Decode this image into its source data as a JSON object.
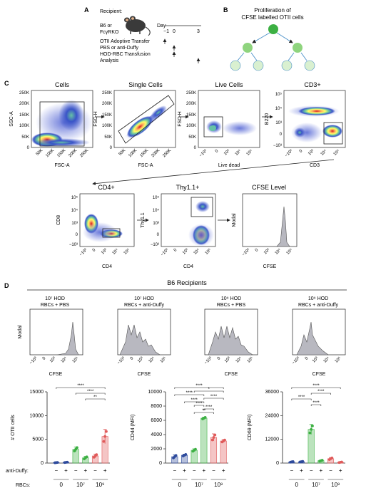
{
  "panel_letters": [
    "A",
    "B",
    "C",
    "D"
  ],
  "panelA": {
    "recipient_label": "Recipient:",
    "mouse_labels": [
      "B6 or",
      "FcγRKO"
    ],
    "day_label": "Day",
    "day_ticks": [
      "−1",
      "0",
      "3"
    ],
    "steps": [
      "OTII Adoptive Transfer",
      "PBS or anti-Duffy",
      "HOD-RBC Transfusion",
      "Analysis"
    ]
  },
  "panelB": {
    "title_lines": [
      "Proliferation of",
      "CFSE labelled OTII cells"
    ]
  },
  "panelC": {
    "plots": [
      {
        "title": "Cells",
        "xlabel": "FSC-A",
        "ylabel": "SSC-A",
        "xticks": [
          "50K",
          "100K",
          "150K",
          "200K",
          "250K"
        ],
        "yticks": [
          "250K",
          "200K",
          "150K",
          "100K",
          "50K",
          "0"
        ]
      },
      {
        "title": "Single Cells",
        "xlabel": "FSC-A",
        "ylabel": "FSC-H",
        "xticks": [
          "50K",
          "100K",
          "150K",
          "200K",
          "250K"
        ],
        "yticks": [
          "250K",
          "200K",
          "150K",
          "100K",
          "50K",
          "0"
        ]
      },
      {
        "title": "Live Cells",
        "xlabel": "Live dead",
        "ylabel": "FSC-H",
        "xticks": [
          "−10³",
          "0",
          "10³",
          "10⁴",
          "10⁵"
        ],
        "yticks": [
          "250K",
          "200K",
          "150K",
          "100K",
          "50K",
          "0"
        ]
      },
      {
        "title": "CD3+",
        "xlabel": "CD3",
        "ylabel": "B220",
        "xticks": [
          "−10³",
          "0",
          "10³",
          "10⁴",
          "10⁵"
        ],
        "yticks": [
          "10⁵",
          "10⁴",
          "10³",
          "0",
          "−10³"
        ]
      },
      {
        "title": "CD4+",
        "xlabel": "CD4",
        "ylabel": "CD8",
        "xticks": [
          "−10³",
          "0",
          "10³",
          "10⁴",
          "10⁵"
        ],
        "yticks": [
          "10⁵",
          "10⁴",
          "10³",
          "0",
          "−10³"
        ]
      },
      {
        "title": "Thy1.1+",
        "xlabel": "CD4",
        "ylabel": "Thy1.1",
        "xticks": [
          "−10³",
          "0",
          "10³",
          "10⁴",
          "10⁵"
        ],
        "yticks": [
          "10⁵",
          "10⁴",
          "10³",
          "0",
          "−10³"
        ]
      },
      {
        "title": "CFSE Level",
        "xlabel": "CFSE",
        "ylabel": "Modal",
        "xticks": [
          "−10³",
          "0",
          "10³",
          "10⁴",
          "10⁵"
        ],
        "yticks": []
      }
    ]
  },
  "panelD": {
    "header": "B6 Recipients",
    "histograms": [
      {
        "title_lines": [
          "10⁷ HOD",
          "RBCs + PBS"
        ],
        "xlabel": "CFSE",
        "ylabel": "Modal",
        "xticks": [
          "−10³",
          "0",
          "10³",
          "10⁴",
          "10⁵"
        ]
      },
      {
        "title_lines": [
          "10⁷ HOD",
          "RBCs + anti-Duffy"
        ],
        "xlabel": "CFSE",
        "ylabel": "",
        "xticks": [
          "−10³",
          "0",
          "10³",
          "10⁴",
          "10⁵"
        ]
      },
      {
        "title_lines": [
          "10⁹ HOD",
          "RBCs + PBS"
        ],
        "xlabel": "CFSE",
        "ylabel": "",
        "xticks": [
          "−10³",
          "0",
          "10³",
          "10⁴",
          "10⁵"
        ]
      },
      {
        "title_lines": [
          "10⁹ HOD",
          "RBCs + anti-Duffy"
        ],
        "xlabel": "CFSE",
        "ylabel": "",
        "xticks": [
          "−10³",
          "0",
          "10³",
          "10⁴",
          "10⁵"
        ]
      }
    ],
    "legend_rows": {
      "anti_duffy": "anti-Duffy:",
      "rbcs": "RBCs:",
      "signs": [
        "−",
        "+",
        "−",
        "+",
        "−",
        "+"
      ],
      "groups": [
        "0",
        "10⁷",
        "10⁹"
      ]
    }
  },
  "chart_data": [
    {
      "type": "bar",
      "ylabel": "# OTII cells",
      "ylim": [
        0,
        15000
      ],
      "yticks": [
        "0",
        "5000",
        "10000",
        "15000"
      ],
      "categories": [
        "0 −",
        "0 +",
        "10⁷ −",
        "10⁷ +",
        "10⁹ −",
        "10⁹ +"
      ],
      "values": [
        100,
        150,
        2900,
        1100,
        1500,
        5600
      ],
      "errors": [
        50,
        60,
        500,
        300,
        400,
        1500
      ],
      "colors": [
        "#2d4a9c",
        "#2d4a9c",
        "#3cb043",
        "#3cb043",
        "#e05a5a",
        "#e05a5a"
      ],
      "significance": [
        {
          "from": 0,
          "to": 5,
          "label": "****"
        },
        {
          "from": 2,
          "to": 5,
          "label": "****"
        },
        {
          "from": 3,
          "to": 5,
          "label": "**"
        }
      ]
    },
    {
      "type": "bar",
      "ylabel": "CD44 (MFI)",
      "ylim": [
        0,
        10000
      ],
      "yticks": [
        "0",
        "2000",
        "4000",
        "6000",
        "8000",
        "10000"
      ],
      "categories": [
        "0 −",
        "0 +",
        "10⁷ −",
        "10⁷ +",
        "10⁹ −",
        "10⁹ +"
      ],
      "values": [
        900,
        1100,
        1800,
        6300,
        3600,
        3100
      ],
      "errors": [
        250,
        150,
        200,
        150,
        500,
        200
      ],
      "colors": [
        "#2d4a9c",
        "#2d4a9c",
        "#3cb043",
        "#3cb043",
        "#e05a5a",
        "#e05a5a"
      ],
      "significance": [
        {
          "from": 0,
          "to": 5,
          "label": "****"
        },
        {
          "from": 2,
          "to": 5,
          "label": "*"
        },
        {
          "from": 0,
          "to": 3,
          "label": "****"
        },
        {
          "from": 3,
          "to": 5,
          "label": "****"
        },
        {
          "from": 1,
          "to": 3,
          "label": "****"
        },
        {
          "from": 2,
          "to": 3,
          "label": "****"
        },
        {
          "from": 3,
          "to": 4,
          "label": "****"
        },
        {
          "from": 2,
          "to": 4,
          "label": "**"
        }
      ]
    },
    {
      "type": "bar",
      "ylabel": "CD69 (MFI)",
      "ylim": [
        0,
        36000
      ],
      "yticks": [
        "0",
        "12000",
        "24000",
        "36000"
      ],
      "categories": [
        "0 −",
        "0 +",
        "10⁷ −",
        "10⁷ +",
        "10⁹ −",
        "10⁹ +"
      ],
      "values": [
        600,
        700,
        17000,
        1200,
        2200,
        400
      ],
      "errors": [
        200,
        200,
        2500,
        300,
        600,
        200
      ],
      "colors": [
        "#2d4a9c",
        "#2d4a9c",
        "#3cb043",
        "#3cb043",
        "#e05a5a",
        "#e05a5a"
      ],
      "significance": [
        {
          "from": 0,
          "to": 5,
          "label": "****"
        },
        {
          "from": 2,
          "to": 4,
          "label": "****"
        },
        {
          "from": 0,
          "to": 2,
          "label": "****"
        },
        {
          "from": 2,
          "to": 3,
          "label": "****"
        }
      ]
    }
  ]
}
